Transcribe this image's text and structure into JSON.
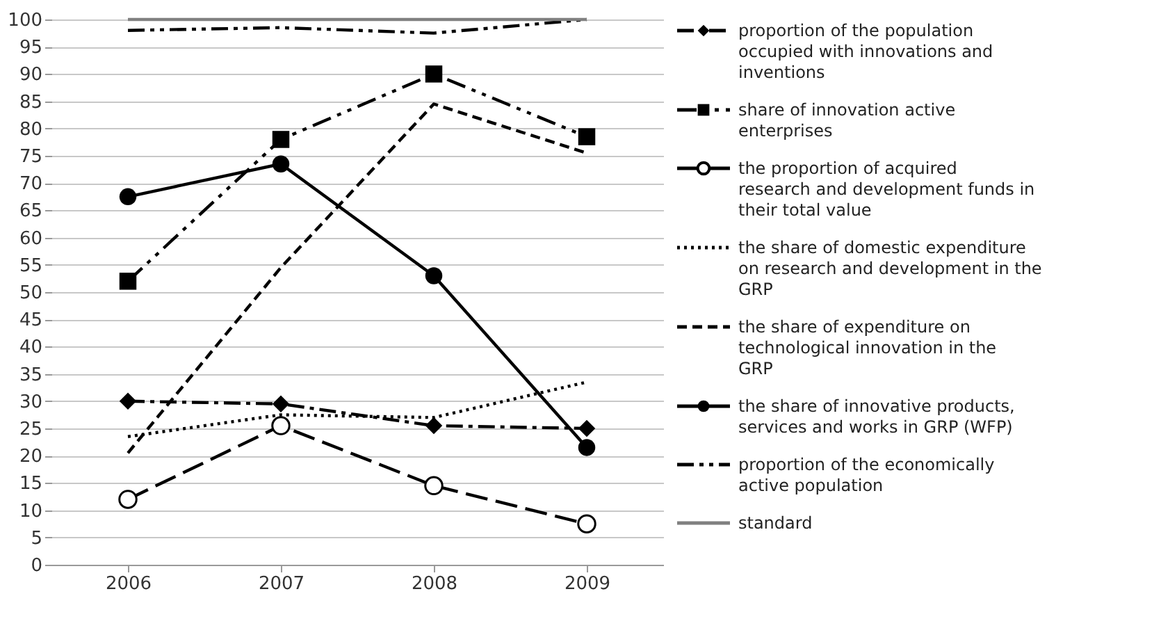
{
  "chart_data": {
    "type": "line",
    "categories": [
      "2006",
      "2007",
      "2008",
      "2009"
    ],
    "ylim": [
      0,
      100
    ],
    "yticks": [
      0,
      5,
      10,
      15,
      20,
      25,
      30,
      35,
      40,
      45,
      50,
      55,
      60,
      65,
      70,
      75,
      80,
      85,
      90,
      95,
      100
    ],
    "grid": "y",
    "legend": "right",
    "series": [
      {
        "name": "proportion of the population occupied with innovations and inventions",
        "color": "#000000",
        "marker": "diamond",
        "line_style": "dashed",
        "values": [
          30,
          29.5,
          25.5,
          25
        ]
      },
      {
        "name": "share of innovation active enterprises",
        "color": "#000000",
        "marker": "square",
        "line_style": "dashed",
        "values": [
          52,
          78,
          90,
          78.5
        ]
      },
      {
        "name": "the proportion of acquired research and development funds in their total value",
        "color": "#000000",
        "marker": "circle",
        "line_style": "dashed",
        "values": [
          12,
          25.5,
          14.5,
          7.5
        ]
      },
      {
        "name": "the share of domestic expenditure on research and development in the GRP",
        "color": "#000000",
        "marker": "none",
        "line_style": "dotted",
        "values": [
          23.5,
          27.5,
          27,
          33.5
        ]
      },
      {
        "name": "the share of expenditure on technological innovation in the GRP",
        "color": "#000000",
        "marker": "none",
        "line_style": "dashed",
        "values": [
          20.5,
          54.5,
          84.5,
          75.5
        ]
      },
      {
        "name": "the share of innovative products, services and works in GRP (WFP)",
        "color": "#000000",
        "marker": "circle",
        "line_style": "solid",
        "values": [
          67.5,
          73.5,
          53,
          21.5
        ]
      },
      {
        "name": "proportion of the economically active population",
        "color": "#000000",
        "marker": "none",
        "line_style": "dashed",
        "values": [
          98,
          98.5,
          97.5,
          100
        ]
      },
      {
        "name": "standard",
        "color": "#808080",
        "marker": "none",
        "line_style": "solid",
        "values": [
          100,
          100,
          100,
          100
        ]
      }
    ]
  }
}
